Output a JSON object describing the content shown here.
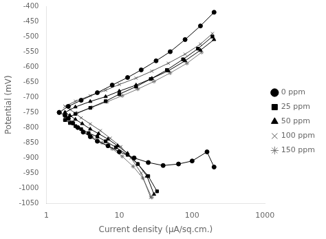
{
  "chart_data": {
    "type": "line",
    "xlabel": "Current density (μA/sq.cm.)",
    "ylabel": "Potential (mV)",
    "log": "x",
    "xlim": [
      1,
      1000
    ],
    "ylim": [
      -1050,
      -400
    ],
    "xticks": [
      1,
      10,
      100,
      1000
    ],
    "yticks": [
      -1050,
      -1000,
      -950,
      -900,
      -850,
      -800,
      -750,
      -700,
      -650,
      -600,
      -550,
      -500,
      -450,
      -400
    ],
    "grid": false,
    "legend": "right",
    "series": [
      {
        "name": "0 ppm",
        "color": "#000000",
        "marker": "circle",
        "cathodic": {
          "x": [
            1.5,
            1.8,
            2.0,
            2.3,
            2.7,
            3.2,
            4.0,
            5.0,
            7.0,
            10.0,
            16.0,
            25.0,
            40.0,
            65.0,
            100.0,
            160.0,
            200.0
          ],
          "values": [
            -750,
            -760,
            -770,
            -785,
            -800,
            -815,
            -830,
            -845,
            -860,
            -880,
            -900,
            -915,
            -925,
            -920,
            -910,
            -880,
            -930
          ]
        },
        "anodic": {
          "x": [
            1.5,
            2.0,
            3.0,
            5.0,
            8.0,
            13.0,
            20.0,
            32.0,
            50.0,
            80.0,
            130.0,
            200.0
          ],
          "values": [
            -750,
            -730,
            -710,
            -685,
            -660,
            -635,
            -610,
            -580,
            -550,
            -510,
            -465,
            -420
          ]
        }
      },
      {
        "name": "25 ppm",
        "color": "#000000",
        "marker": "square",
        "cathodic": {
          "x": [
            1.8,
            2.1,
            2.5,
            3.0,
            3.8,
            5.0,
            6.5,
            9.0,
            13.0,
            18.0,
            25.0,
            33.0
          ],
          "values": [
            -775,
            -785,
            -795,
            -805,
            -818,
            -830,
            -845,
            -865,
            -890,
            -920,
            -960,
            -1010
          ]
        },
        "anodic": {
          "x": [
            1.8,
            2.5,
            4.0,
            6.5,
            10.0,
            17.0,
            27.0,
            45.0,
            75.0,
            120.0,
            190.0
          ],
          "values": [
            -775,
            -755,
            -735,
            -713,
            -690,
            -665,
            -640,
            -610,
            -575,
            -540,
            -500
          ]
        }
      },
      {
        "name": "50 ppm",
        "color": "#000000",
        "marker": "triangle",
        "cathodic": {
          "x": [
            1.8,
            2.1,
            2.5,
            3.1,
            4.0,
            5.2,
            7.0,
            9.5,
            13.0,
            18.0,
            24.0,
            30.0
          ],
          "values": [
            -750,
            -760,
            -773,
            -787,
            -805,
            -820,
            -838,
            -860,
            -885,
            -920,
            -960,
            -1020
          ]
        },
        "anodic": {
          "x": [
            1.8,
            2.5,
            4.0,
            6.5,
            10.0,
            17.0,
            28.0,
            47.0,
            80.0,
            130.0,
            200.0
          ],
          "values": [
            -750,
            -732,
            -714,
            -698,
            -680,
            -660,
            -638,
            -613,
            -580,
            -545,
            -510
          ]
        }
      },
      {
        "name": "100 ppm",
        "color": "#555555",
        "marker": "x",
        "cathodic": {
          "x": [
            1.8,
            2.1,
            2.5,
            3.0,
            4.0,
            5.5,
            7.5,
            10.5,
            14.5,
            20.0,
            27.0
          ],
          "values": [
            -730,
            -740,
            -753,
            -768,
            -788,
            -810,
            -835,
            -863,
            -900,
            -950,
            -1030
          ]
        },
        "anodic": {
          "x": [
            1.8,
            2.5,
            4.0,
            6.5,
            10.0,
            17.0,
            28.0,
            47.0,
            80.0,
            130.0,
            190.0
          ],
          "values": [
            -730,
            -713,
            -695,
            -677,
            -658,
            -637,
            -614,
            -588,
            -558,
            -525,
            -490
          ]
        }
      },
      {
        "name": "150 ppm",
        "color": "#777777",
        "marker": "star",
        "cathodic": {
          "x": [
            1.9,
            2.2,
            2.6,
            3.2,
            4.2,
            5.8,
            8.0,
            11.0,
            15.5,
            21.0,
            28.0
          ],
          "values": [
            -770,
            -782,
            -797,
            -812,
            -830,
            -850,
            -870,
            -895,
            -928,
            -966,
            -1030
          ]
        },
        "anodic": {
          "x": [
            1.9,
            2.6,
            4.2,
            6.8,
            11.0,
            18.0,
            30.0,
            50.0,
            85.0,
            135.0
          ],
          "values": [
            -770,
            -752,
            -733,
            -715,
            -695,
            -673,
            -648,
            -620,
            -588,
            -552
          ]
        }
      }
    ]
  }
}
